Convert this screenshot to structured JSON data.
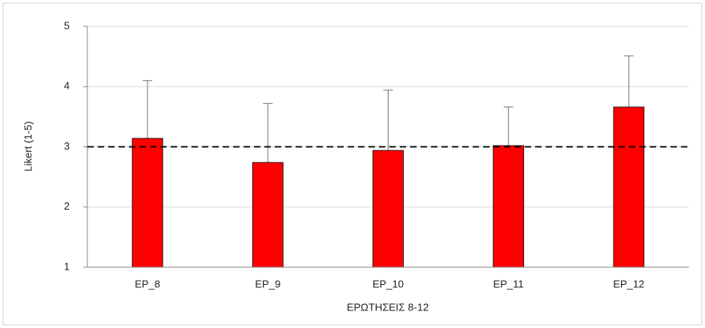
{
  "chart_data": {
    "type": "bar",
    "categories": [
      "ΕΡ_8",
      "ΕΡ_9",
      "ΕΡ_10",
      "ΕΡ_11",
      "ΕΡ_12"
    ],
    "values": [
      3.14,
      2.74,
      2.94,
      3.02,
      3.66
    ],
    "errors": [
      0.96,
      0.98,
      1.0,
      0.64,
      0.85
    ],
    "color": "#ff0000",
    "reference_line": 3,
    "x_label": "ΕΡΩΤΗΣΕΙΣ 8-12",
    "y_label": "Likert (1-5)",
    "ylim": [
      1,
      5
    ],
    "yticks": [
      1,
      2,
      3,
      4,
      5
    ],
    "grid": true
  }
}
